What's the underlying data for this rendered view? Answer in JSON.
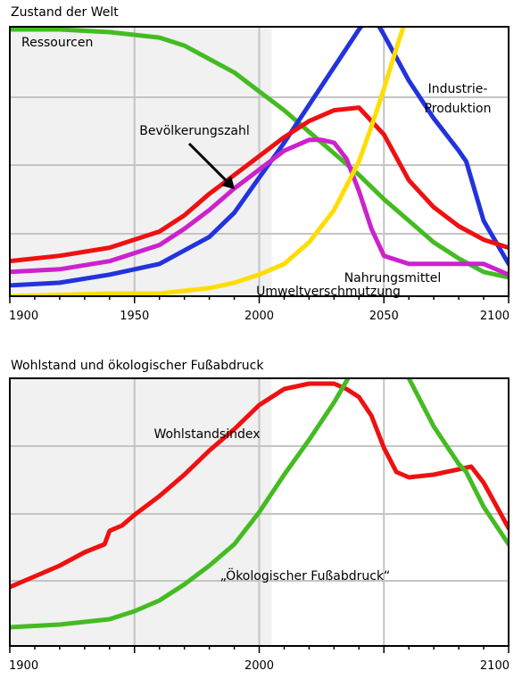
{
  "charts": [
    {
      "title": "Zustand der Welt",
      "chart_data": {
        "type": "line",
        "title": "Zustand der Welt",
        "xlim": [
          1900,
          2100
        ],
        "x_ticks": [
          1900,
          1950,
          2000,
          2050,
          2100
        ],
        "grid": true,
        "shaded_region": [
          1900,
          2005
        ],
        "series": [
          {
            "name": "Ressourcen",
            "color": "#44bb22",
            "x": [
              1900,
              1920,
              1940,
              1960,
              1970,
              1980,
              1990,
              2000,
              2010,
              2020,
              2030,
              2040,
              2050,
              2060,
              2070,
              2080,
              2090,
              2100
            ],
            "y": [
              0.99,
              0.99,
              0.98,
              0.96,
              0.93,
              0.88,
              0.83,
              0.76,
              0.69,
              0.61,
              0.53,
              0.45,
              0.36,
              0.28,
              0.2,
              0.14,
              0.09,
              0.07
            ]
          },
          {
            "name": "Industrie-Produktion",
            "color": "#2233dd",
            "x": [
              1900,
              1920,
              1940,
              1960,
              1970,
              1980,
              1990,
              2000,
              2010,
              2020,
              2030,
              2040,
              2045,
              2050,
              2060,
              2070,
              2080,
              2083,
              2090,
              2100
            ],
            "y": [
              0.04,
              0.05,
              0.08,
              0.12,
              0.17,
              0.22,
              0.31,
              0.44,
              0.57,
              0.71,
              0.85,
              0.99,
              1.05,
              0.97,
              0.8,
              0.66,
              0.54,
              0.5,
              0.28,
              0.12
            ]
          },
          {
            "name": "Bevölkerungszahl",
            "color": "#ee1111",
            "x": [
              1900,
              1920,
              1940,
              1960,
              1970,
              1980,
              1990,
              2000,
              2010,
              2020,
              2030,
              2040,
              2050,
              2060,
              2070,
              2080,
              2090,
              2100
            ],
            "y": [
              0.13,
              0.15,
              0.18,
              0.24,
              0.3,
              0.38,
              0.45,
              0.52,
              0.59,
              0.65,
              0.69,
              0.7,
              0.6,
              0.43,
              0.33,
              0.26,
              0.21,
              0.18
            ]
          },
          {
            "name": "Nahrungsmittel",
            "color": "#cc22cc",
            "x": [
              1900,
              1920,
              1940,
              1960,
              1970,
              1980,
              1990,
              2000,
              2010,
              2020,
              2025,
              2030,
              2035,
              2040,
              2045,
              2050,
              2060,
              2070,
              2080,
              2090,
              2100
            ],
            "y": [
              0.09,
              0.1,
              0.13,
              0.19,
              0.25,
              0.32,
              0.4,
              0.47,
              0.54,
              0.58,
              0.58,
              0.57,
              0.51,
              0.39,
              0.25,
              0.15,
              0.12,
              0.12,
              0.12,
              0.12,
              0.08
            ]
          },
          {
            "name": "Umweltverschmutzung",
            "color": "#ffdd00",
            "x": [
              1900,
              1940,
              1960,
              1980,
              1990,
              2000,
              2010,
              2020,
              2030,
              2040,
              2045,
              2050,
              2055,
              2060,
              2062
            ],
            "y": [
              0.0,
              0.01,
              0.01,
              0.03,
              0.05,
              0.08,
              0.12,
              0.2,
              0.32,
              0.5,
              0.63,
              0.77,
              0.92,
              1.06,
              1.12
            ]
          }
        ]
      }
    },
    {
      "title": "Wohlstand und ökologischer Fußabdruck",
      "chart_data": {
        "type": "line",
        "title": "Wohlstand und ökologischer Fußabdruck",
        "xlim": [
          1900,
          2100
        ],
        "x_ticks": [
          1900,
          2000,
          2100
        ],
        "grid": true,
        "shaded_region": [
          1900,
          2005
        ],
        "series": [
          {
            "name": "Wohlstandsindex",
            "color": "#ee1111",
            "x": [
              1900,
              1910,
              1920,
              1930,
              1938,
              1940,
              1945,
              1950,
              1960,
              1970,
              1980,
              1990,
              2000,
              2010,
              2020,
              2025,
              2030,
              2035,
              2040,
              2045,
              2050,
              2055,
              2060,
              2070,
              2080,
              2085,
              2090,
              2100
            ],
            "y": [
              0.22,
              0.26,
              0.3,
              0.35,
              0.38,
              0.43,
              0.45,
              0.49,
              0.56,
              0.64,
              0.73,
              0.81,
              0.9,
              0.96,
              0.98,
              0.98,
              0.98,
              0.96,
              0.93,
              0.86,
              0.74,
              0.65,
              0.63,
              0.64,
              0.66,
              0.67,
              0.61,
              0.44
            ]
          },
          {
            "name": "„Ökologischer Fußabdruck“",
            "color": "#44bb22",
            "x": [
              1900,
              1920,
              1940,
              1950,
              1960,
              1970,
              1980,
              1990,
              2000,
              2010,
              2020,
              2030,
              2040,
              2050,
              2060,
              2070,
              2080,
              2083,
              2090,
              2100
            ],
            "y": [
              0.07,
              0.08,
              0.1,
              0.13,
              0.17,
              0.23,
              0.3,
              0.38,
              0.5,
              0.64,
              0.77,
              0.91,
              1.07,
              1.15,
              1.0,
              0.82,
              0.68,
              0.65,
              0.52,
              0.38
            ]
          }
        ]
      }
    }
  ]
}
